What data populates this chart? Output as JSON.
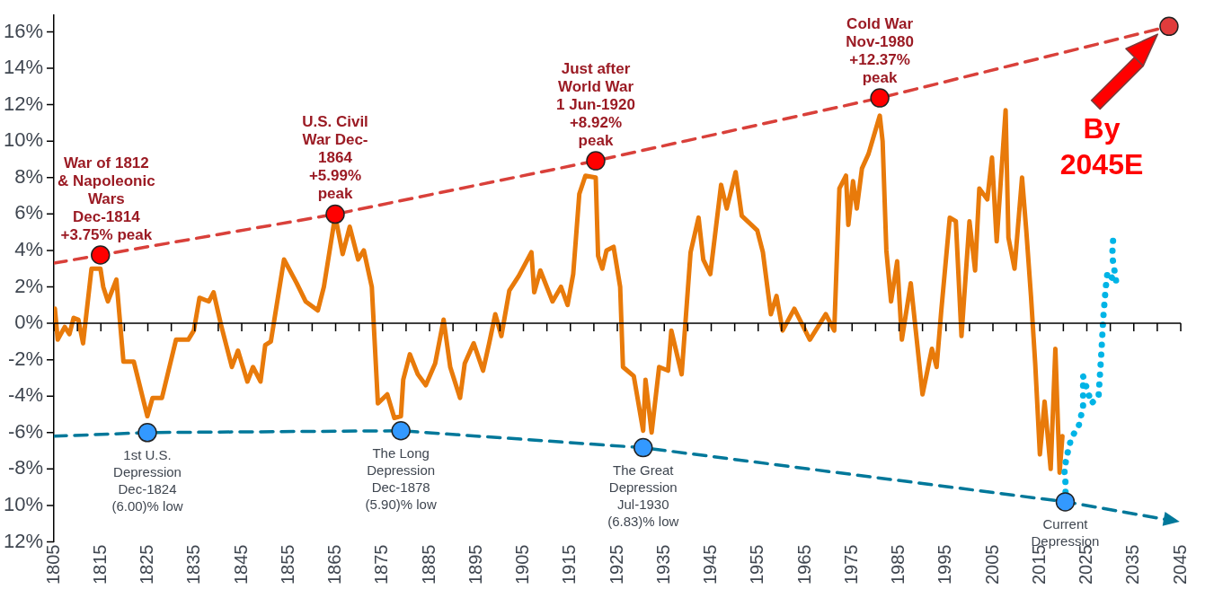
{
  "chart_data": {
    "type": "line",
    "xlim": [
      1805,
      2045
    ],
    "ylim": [
      -12,
      16.9
    ],
    "xticks": [
      1805,
      {
        "value": 1810,
        "label": null
      },
      1815,
      {
        "value": 1820,
        "label": null
      },
      1825,
      {
        "value": 1830,
        "label": null
      },
      1835,
      {
        "value": 1840,
        "label": null
      },
      1845,
      {
        "value": 1850,
        "label": null
      },
      1855,
      {
        "value": 1860,
        "label": null
      },
      1865,
      {
        "value": 1870,
        "label": null
      },
      1875,
      {
        "value": 1880,
        "label": null
      },
      1885,
      {
        "value": 1890,
        "label": null
      },
      1895,
      {
        "value": 1900,
        "label": null
      },
      1905,
      {
        "value": 1910,
        "label": null
      },
      1915,
      {
        "value": 1920,
        "label": null
      },
      1925,
      {
        "value": 1930,
        "label": null
      },
      1935,
      {
        "value": 1940,
        "label": null
      },
      1945,
      {
        "value": 1950,
        "label": null
      },
      1955,
      {
        "value": 1960,
        "label": null
      },
      1965,
      {
        "value": 1970,
        "label": null
      },
      1975,
      {
        "value": 1980,
        "label": null
      },
      1985,
      {
        "value": 1990,
        "label": null
      },
      1995,
      {
        "value": 2000,
        "label": null
      },
      2005,
      {
        "value": 2010,
        "label": null
      },
      2015,
      {
        "value": 2020,
        "label": null
      },
      2025,
      {
        "value": 2030,
        "label": null
      },
      2035,
      {
        "value": 2040,
        "label": null
      },
      2045
    ],
    "yticks": [
      {
        "value": 16,
        "label": "16%"
      },
      {
        "value": 14,
        "label": "14%"
      },
      {
        "value": 12,
        "label": "12%"
      },
      {
        "value": 10,
        "label": "10%"
      },
      {
        "value": 8,
        "label": "8%"
      },
      {
        "value": 6,
        "label": "6%"
      },
      {
        "value": 4,
        "label": "4%"
      },
      {
        "value": 2,
        "label": "2%"
      },
      {
        "value": 0,
        "label": "0%"
      },
      {
        "value": -2,
        "label": "-2%"
      },
      {
        "value": -4,
        "label": "-4%"
      },
      {
        "value": -6,
        "label": "-6%"
      },
      {
        "value": -8,
        "label": "-8%"
      },
      {
        "value": -10,
        "label": "10%"
      },
      {
        "value": -12,
        "label": "12%"
      }
    ],
    "grid": false,
    "legend": false,
    "ref_lines": [
      {
        "axis": "y",
        "value": 0,
        "color": "#000000",
        "line_style": "solid"
      }
    ],
    "series": [
      {
        "color": "#e87a0a",
        "marker": "none",
        "line_style": "solid",
        "x": [
          1805.2,
          1805.8,
          1807.3,
          1808.3,
          1809.2,
          1810.2,
          1811.2,
          1813,
          1814.9,
          1815.5,
          1816.5,
          1818.3,
          1819.8,
          1822,
          1824.9,
          1826,
          1828,
          1831,
          1833.6,
          1834.8,
          1836,
          1838,
          1839,
          1840.6,
          1842.9,
          1844.2,
          1846.2,
          1847.4,
          1849,
          1850,
          1851.2,
          1854,
          1856.7,
          1858.6,
          1861.2,
          1862.5,
          1864.9,
          1866.5,
          1868,
          1869.8,
          1871,
          1872.7,
          1874,
          1876,
          1877.5,
          1878.9,
          1879.4,
          1880.8,
          1882.5,
          1884.2,
          1886.2,
          1888,
          1889.4,
          1891.5,
          1892.5,
          1894.4,
          1896.4,
          1897.7,
          1899,
          1900.3,
          1902,
          1904,
          1906.7,
          1907.3,
          1908.6,
          1911.2,
          1913,
          1914.4,
          1915.6,
          1916.9,
          1918.2,
          1920.4,
          1920.9,
          1921.8,
          1922.7,
          1924.2,
          1925.6,
          1926.2,
          1928.5,
          1930.5,
          1931,
          1932.3,
          1933.9,
          1935.8,
          1936.5,
          1938.7,
          1940.6,
          1942.3,
          1943.3,
          1944.8,
          1947.1,
          1948.3,
          1950.2,
          1951.5,
          1954.8,
          1956,
          1957.7,
          1958.9,
          1960.2,
          1962.7,
          1966,
          1969.4,
          1971.2,
          1972.3,
          1973.7,
          1974.2,
          1975.2,
          1976,
          1977.1,
          1978.5,
          1980.9,
          1981.5,
          1982.3,
          1983.3,
          1984.6,
          1985.6,
          1987.5,
          1990,
          1992,
          1993,
          1994,
          1995.8,
          1997.1,
          1998.3,
          2000,
          2001.2,
          2002.1,
          2003.8,
          2004.8,
          2005.8,
          2007.7,
          2008.3,
          2009.6,
          2011.2,
          2012.1,
          2013.1,
          2014,
          2015,
          2016,
          2017.3,
          2018.3,
          2019.2,
          2019.8
        ],
        "values": [
          0.8,
          -0.9,
          -0.2,
          -0.6,
          0.3,
          0.2,
          -1.1,
          3.0,
          3.0,
          2.0,
          1.2,
          2.4,
          -2.1,
          -2.1,
          -5.1,
          -4.1,
          -4.1,
          -0.9,
          -0.9,
          -0.4,
          1.4,
          1.2,
          1.7,
          -0.1,
          -2.4,
          -1.5,
          -3.2,
          -2.4,
          -3.2,
          -1.2,
          -1.0,
          3.5,
          2.2,
          1.2,
          0.7,
          2.0,
          5.9,
          3.8,
          5.3,
          3.5,
          4.0,
          2.0,
          -4.4,
          -3.9,
          -5.2,
          -5.1,
          -3.1,
          -1.7,
          -2.8,
          -3.4,
          -2.2,
          0.2,
          -2.4,
          -4.1,
          -2.2,
          -1.1,
          -2.6,
          -1.1,
          0.5,
          -0.7,
          1.8,
          2.6,
          3.9,
          1.7,
          2.9,
          1.2,
          2.0,
          1.0,
          2.7,
          7.1,
          8.1,
          8.0,
          3.7,
          3.0,
          4.0,
          4.2,
          2.0,
          -2.4,
          -2.9,
          -5.9,
          -3.1,
          -6.0,
          -2.4,
          -2.6,
          -0.4,
          -2.8,
          3.9,
          5.8,
          3.5,
          2.7,
          7.6,
          6.3,
          8.3,
          5.9,
          5.1,
          3.9,
          0.5,
          1.5,
          -0.4,
          0.8,
          -0.9,
          0.5,
          -0.4,
          7.4,
          8.1,
          5.4,
          7.8,
          6.3,
          8.5,
          9.3,
          11.4,
          10.0,
          4.0,
          1.2,
          3.4,
          -0.9,
          2.2,
          -3.9,
          -1.4,
          -2.4,
          0.7,
          5.8,
          5.6,
          -0.7,
          5.6,
          2.9,
          7.4,
          6.8,
          9.1,
          4.5,
          11.7,
          4.7,
          3.0,
          8.0,
          5.1,
          1.5,
          -2.2,
          -7.2,
          -4.3,
          -8.0,
          -1.4,
          -8.2,
          -6.2
        ]
      },
      {
        "color": "#00b4e6",
        "marker": "none",
        "line_style": "dotted",
        "x": [
          2020.4,
          2020.5,
          2020.2,
          2021,
          2021.7,
          2023.3,
          2024.2,
          2024.2,
          2026,
          2027.5,
          2028.1,
          2028.5,
          2029,
          2029.4,
          2031.3,
          2030.4,
          2030.6
        ],
        "values": [
          -9.8,
          -8.9,
          -8.0,
          -7.0,
          -6.3,
          -5.6,
          -4.6,
          -2.9,
          -4.4,
          -4.0,
          -1.6,
          0.3,
          1.9,
          2.8,
          2.2,
          3.7,
          4.6
        ]
      },
      {
        "color": "#d9403a",
        "marker": "none",
        "line_style": "dashed",
        "x": [
          1805,
          1814.9,
          1864.9,
          1920.4,
          1980.9,
          2042.5
        ],
        "values": [
          3.3,
          3.75,
          5.99,
          8.92,
          12.37,
          16.3
        ]
      },
      {
        "color": "#00789a",
        "marker": "none",
        "line_style": "dashed",
        "x": [
          1805,
          1824.9,
          1878.9,
          1930.5,
          2020.4,
          2042.5
        ],
        "values": [
          -6.2,
          -6.0,
          -5.9,
          -6.83,
          -9.8,
          -10.8
        ]
      },
      {
        "type": "scatter",
        "color": "#ff0000",
        "marker": "circle",
        "x": [
          1814.9,
          1864.9,
          1920.4,
          1980.9
        ],
        "values": [
          3.75,
          5.99,
          8.92,
          12.37
        ]
      },
      {
        "type": "scatter",
        "color": "#3399ff",
        "marker": "circle",
        "x": [
          1824.9,
          1878.9,
          1930.5,
          2020.4
        ],
        "values": [
          -6.0,
          -5.9,
          -6.83,
          -9.8
        ]
      },
      {
        "type": "scatter",
        "color": "#e03c3c",
        "marker": "circle",
        "x": [
          2042.5
        ],
        "values": [
          16.3
        ]
      }
    ],
    "annotations": [
      {
        "text": "War of 1812\n& Napoleonic\nWars\nDec-1814\n+3.75% peak",
        "x": 1814.9,
        "y": 3.75
      },
      {
        "text": "U.S. Civil\nWar Dec-\n1864\n+5.99%\npeak",
        "x": 1864.9,
        "y": 5.99
      },
      {
        "text": "Just after\nWorld War\n1 Jun-1920\n+8.92%\npeak",
        "x": 1920.4,
        "y": 8.92
      },
      {
        "text": "Cold War\nNov-1980\n+12.37%\npeak",
        "x": 1980.9,
        "y": 12.37
      },
      {
        "text": "1st U.S.\nDepression\nDec-1824\n(6.00)% low",
        "x": 1824.9,
        "y": -6.0
      },
      {
        "text": "The Long\nDepression\nDec-1878\n(5.90)% low",
        "x": 1878.9,
        "y": -5.9
      },
      {
        "text": "The Great\nDepression\nJul-1930\n(6.83)% low",
        "x": 1930.5,
        "y": -6.83
      },
      {
        "text": "Current\nDepression",
        "x": 2020.4,
        "y": -9.8
      },
      "By\n2045E"
    ]
  }
}
